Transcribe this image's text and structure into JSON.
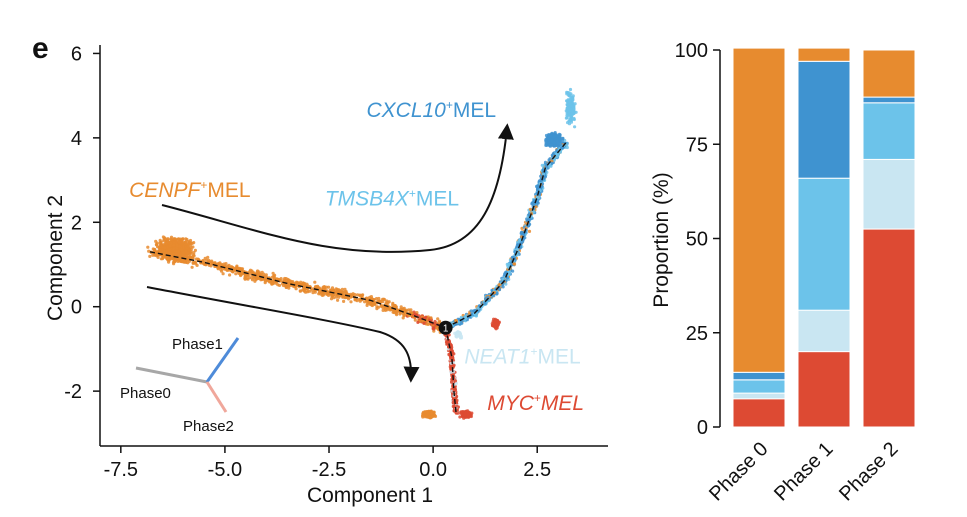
{
  "panel_label": "e",
  "colors": {
    "orange": "#E78B2F",
    "dark_blue": "#3F93D0",
    "light_blue": "#6CC3EA",
    "pale_blue": "#C9E6F2",
    "red": "#DD4A33",
    "phase0_line": "#A7A7A7",
    "phase1_line": "#4E8BD9",
    "phase2_line": "#F0A79B"
  },
  "chart_data": [
    {
      "type": "scatter",
      "xlabel": "Component 1",
      "ylabel": "Component 2",
      "xlim": [
        -8,
        4.2
      ],
      "ylim": [
        -3.3,
        6.2
      ],
      "xticks": [
        -7.5,
        -5.0,
        -2.5,
        0.0,
        2.5
      ],
      "xtick_labels": [
        "-7.5",
        "-5.0",
        "-2.5",
        "0.0",
        "2.5"
      ],
      "yticks": [
        -2,
        0,
        2,
        4,
        6
      ],
      "ytick_labels": [
        "-2",
        "0",
        "2",
        "4",
        "6"
      ],
      "branch_point_label": "1",
      "cell_states": [
        {
          "gene": "CENPF",
          "suffix": "MEL",
          "color": "#E78B2F",
          "x": -7.3,
          "y": 2.6
        },
        {
          "gene": "CXCL10",
          "suffix": "MEL",
          "color": "#3F93D0",
          "x": -1.6,
          "y": 4.5
        },
        {
          "gene": "TMSB4X",
          "suffix": "MEL",
          "color": "#6CC3EA",
          "x": -2.6,
          "y": 2.4
        },
        {
          "gene": "NEAT1",
          "suffix": "MEL",
          "color": "#C9E6F2",
          "x": 0.75,
          "y": -1.35
        },
        {
          "gene": "MYC",
          "suffix": "MEL",
          "color": "#DD4A33",
          "x": 1.3,
          "y": -2.45,
          "italic_suffix": true
        }
      ],
      "trajectory": {
        "stem": [
          [
            -6.8,
            1.3
          ],
          [
            -5.5,
            1.05
          ],
          [
            -4.5,
            0.8
          ],
          [
            -3.5,
            0.55
          ],
          [
            -2.5,
            0.35
          ],
          [
            -1.5,
            0.15
          ],
          [
            -0.5,
            -0.2
          ],
          [
            0.3,
            -0.5
          ]
        ],
        "upper": [
          [
            0.3,
            -0.5
          ],
          [
            1.0,
            -0.15
          ],
          [
            1.7,
            0.6
          ],
          [
            2.1,
            1.5
          ],
          [
            2.5,
            2.6
          ],
          [
            2.7,
            3.3
          ],
          [
            3.2,
            3.9
          ]
        ],
        "lower": [
          [
            0.3,
            -0.5
          ],
          [
            0.45,
            -1.2
          ],
          [
            0.5,
            -2.0
          ],
          [
            0.55,
            -2.5
          ]
        ]
      },
      "phase_legend": [
        "Phase0",
        "Phase1",
        "Phase2"
      ]
    },
    {
      "type": "bar",
      "stacked": true,
      "ylabel": "Proportion (%)",
      "ylim": [
        0,
        100
      ],
      "yticks": [
        0,
        25,
        50,
        75,
        100
      ],
      "ytick_labels": [
        "0",
        "25",
        "50",
        "75",
        "100"
      ],
      "categories": [
        "Phase 0",
        "Phase 1",
        "Phase 2"
      ],
      "series": [
        {
          "color": "#DD4A33",
          "values": [
            7.5,
            20,
            52.5
          ]
        },
        {
          "color": "#C9E6F2",
          "values": [
            1.5,
            11,
            18.5
          ]
        },
        {
          "color": "#6CC3EA",
          "values": [
            3.5,
            35,
            15
          ]
        },
        {
          "color": "#3F93D0",
          "values": [
            2,
            31,
            1.5
          ]
        },
        {
          "color": "#E78B2F",
          "values": [
            86,
            3.5,
            12.5
          ]
        }
      ]
    }
  ]
}
